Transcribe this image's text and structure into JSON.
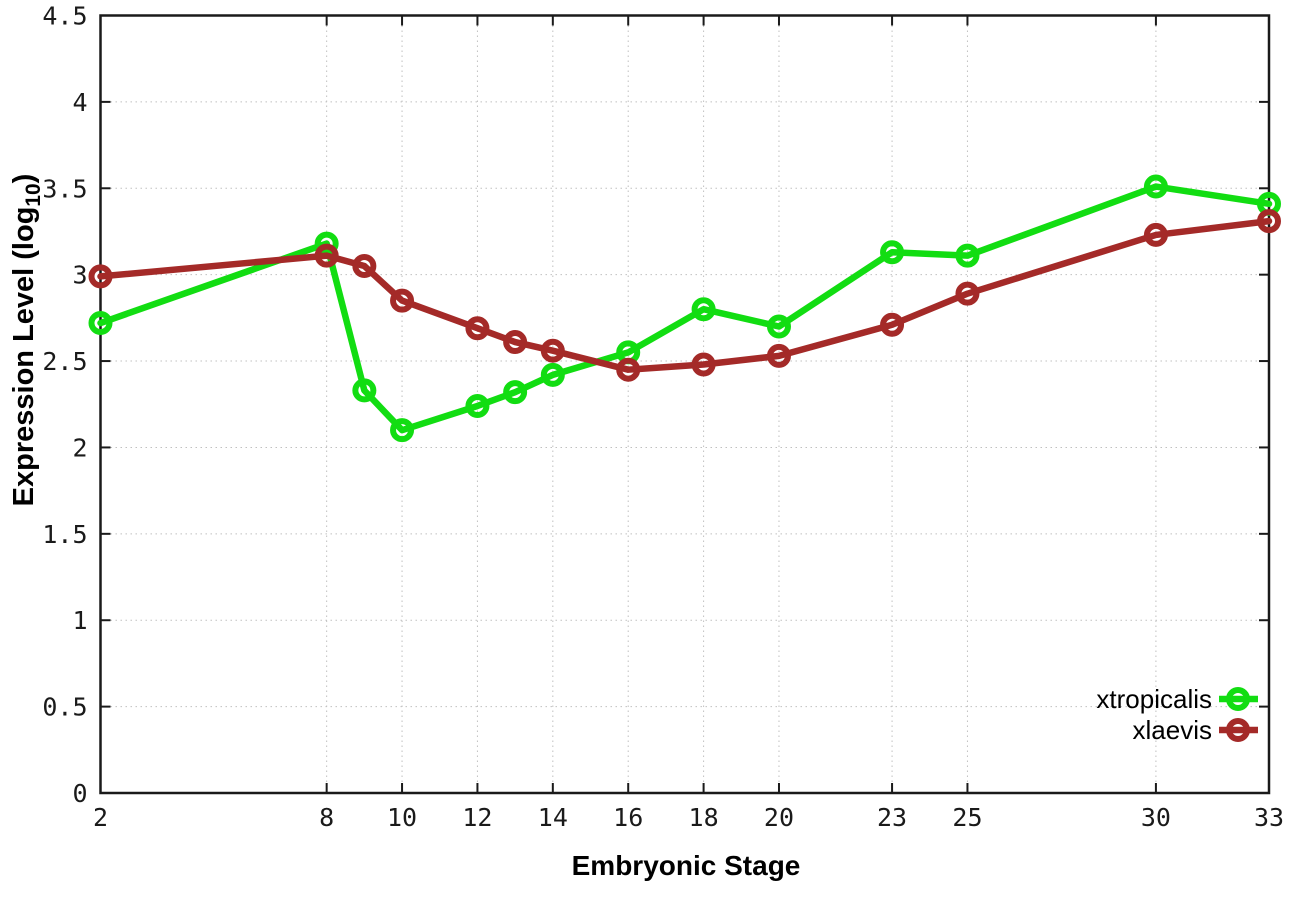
{
  "chart_data": {
    "type": "line",
    "title": "",
    "xlabel": "Embryonic Stage",
    "ylabel": "Expression Level (log10)",
    "ylabel_parts": {
      "prefix": "Expression Level (log",
      "subscript": "10",
      "suffix": ")"
    },
    "x": [
      2,
      8,
      9,
      10,
      12,
      13,
      14,
      16,
      18,
      20,
      23,
      25,
      30,
      33
    ],
    "xticks": [
      2,
      8,
      10,
      12,
      14,
      16,
      18,
      20,
      23,
      25,
      30,
      33
    ],
    "yticks": [
      0,
      0.5,
      1,
      1.5,
      2,
      2.5,
      3,
      3.5,
      4,
      4.5
    ],
    "xlim": [
      2,
      33
    ],
    "ylim": [
      0,
      4.5
    ],
    "grid": true,
    "legend_position": "bottom-right",
    "series": [
      {
        "name": "xtropicalis",
        "color": "#12dd12",
        "values": [
          2.72,
          3.18,
          2.33,
          2.1,
          2.24,
          2.32,
          2.42,
          2.55,
          2.8,
          2.7,
          3.13,
          3.11,
          3.51,
          3.41
        ]
      },
      {
        "name": "xlaevis",
        "color": "#a42a28",
        "values": [
          2.99,
          3.11,
          3.05,
          2.85,
          2.69,
          2.61,
          2.56,
          2.45,
          2.48,
          2.53,
          2.71,
          2.89,
          3.23,
          3.31
        ]
      }
    ]
  },
  "styles": {
    "background": "#ffffff",
    "grid_color": "#c0c0c0",
    "axis_color": "#1a1a1a",
    "text_color": "#000000"
  }
}
